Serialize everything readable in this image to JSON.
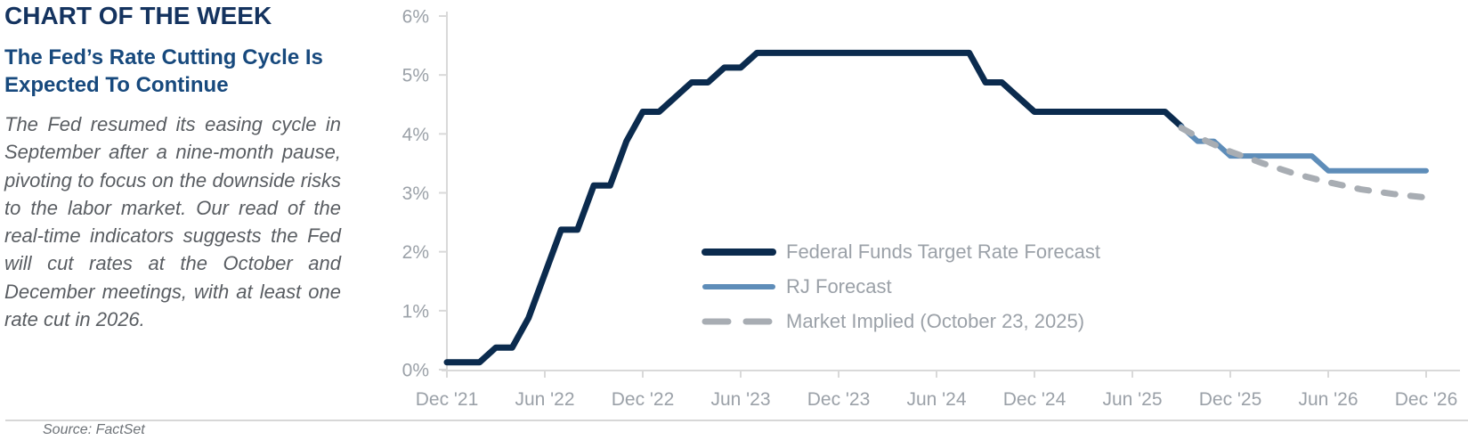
{
  "header": {
    "title": "CHART OF THE WEEK",
    "subtitle": "The Fed’s Rate Cutting Cycle Is Expected To Continue"
  },
  "commentary": "The Fed resumed its easing cycle in September after a nine-month pause, pivoting to focus on the downside risks to the labor market. Our read of the real-time indicators suggests the Fed will cut rates at the October and December meetings, with at least one rate cut in 2026.",
  "source": "Source: FactSet",
  "colors": {
    "title_navy": "#14335f",
    "subtitle_navy": "#17497d",
    "body_gray": "#595d62",
    "axis_gray": "#d9d9d9",
    "label_gray": "#9ba1a8",
    "fed_line_navy": "#0b2b4e",
    "rj_line_blue": "#5e8db9",
    "market_line_gray": "#a8adb3"
  },
  "chart_data": {
    "type": "line",
    "title": "",
    "xlabel": "",
    "ylabel": "",
    "ylim": [
      0,
      6
    ],
    "grid": false,
    "legend_position": "inside-center",
    "x_unit": "month (YYYY-MM), Dec 2021 through Dec 2026",
    "y_ticks": [
      {
        "label": "0%",
        "v": 0
      },
      {
        "label": "1%",
        "v": 1
      },
      {
        "label": "2%",
        "v": 2
      },
      {
        "label": "3%",
        "v": 3
      },
      {
        "label": "4%",
        "v": 4
      },
      {
        "label": "5%",
        "v": 5
      },
      {
        "label": "6%",
        "v": 6
      }
    ],
    "x_ticks": [
      {
        "label": "Dec '21",
        "date": "2021-12"
      },
      {
        "label": "Jun '22",
        "date": "2022-06"
      },
      {
        "label": "Dec '22",
        "date": "2022-12"
      },
      {
        "label": "Jun '23",
        "date": "2023-06"
      },
      {
        "label": "Dec '23",
        "date": "2023-12"
      },
      {
        "label": "Jun '24",
        "date": "2024-06"
      },
      {
        "label": "Dec '24",
        "date": "2024-12"
      },
      {
        "label": "Jun '25",
        "date": "2025-06"
      },
      {
        "label": "Dec '25",
        "date": "2025-12"
      },
      {
        "label": "Jun '26",
        "date": "2026-06"
      },
      {
        "label": "Dec '26",
        "date": "2026-12"
      }
    ],
    "series": [
      {
        "name": "Federal Funds Target Rate Forecast",
        "color": "#0b2b4e",
        "style": "solid",
        "width": 7,
        "points": [
          [
            "2021-12",
            0.125
          ],
          [
            "2022-02",
            0.125
          ],
          [
            "2022-03",
            0.375
          ],
          [
            "2022-04",
            0.375
          ],
          [
            "2022-05",
            0.875
          ],
          [
            "2022-06",
            1.625
          ],
          [
            "2022-07",
            2.375
          ],
          [
            "2022-08",
            2.375
          ],
          [
            "2022-09",
            3.125
          ],
          [
            "2022-10",
            3.125
          ],
          [
            "2022-11",
            3.875
          ],
          [
            "2022-12",
            4.375
          ],
          [
            "2023-01",
            4.375
          ],
          [
            "2023-02",
            4.625
          ],
          [
            "2023-03",
            4.875
          ],
          [
            "2023-04",
            4.875
          ],
          [
            "2023-05",
            5.125
          ],
          [
            "2023-06",
            5.125
          ],
          [
            "2023-07",
            5.375
          ],
          [
            "2024-08",
            5.375
          ],
          [
            "2024-09",
            4.875
          ],
          [
            "2024-10",
            4.875
          ],
          [
            "2024-11",
            4.625
          ],
          [
            "2024-12",
            4.375
          ],
          [
            "2025-08",
            4.375
          ],
          [
            "2025-09",
            4.125
          ]
        ]
      },
      {
        "name": "RJ Forecast",
        "color": "#5e8db9",
        "style": "solid",
        "width": 6,
        "points": [
          [
            "2025-09",
            4.125
          ],
          [
            "2025-10",
            3.875
          ],
          [
            "2025-11",
            3.875
          ],
          [
            "2025-12",
            3.625
          ],
          [
            "2026-05",
            3.625
          ],
          [
            "2026-06",
            3.375
          ],
          [
            "2026-12",
            3.375
          ]
        ]
      },
      {
        "name": "Market Implied (October 23, 2025)",
        "color": "#a8adb3",
        "style": "dashed",
        "width": 7,
        "points": [
          [
            "2025-09",
            4.1
          ],
          [
            "2025-10",
            3.95
          ],
          [
            "2025-11",
            3.82
          ],
          [
            "2025-12",
            3.7
          ],
          [
            "2026-02",
            3.5
          ],
          [
            "2026-04",
            3.32
          ],
          [
            "2026-06",
            3.18
          ],
          [
            "2026-08",
            3.06
          ],
          [
            "2026-10",
            2.98
          ],
          [
            "2026-12",
            2.92
          ]
        ]
      }
    ]
  }
}
